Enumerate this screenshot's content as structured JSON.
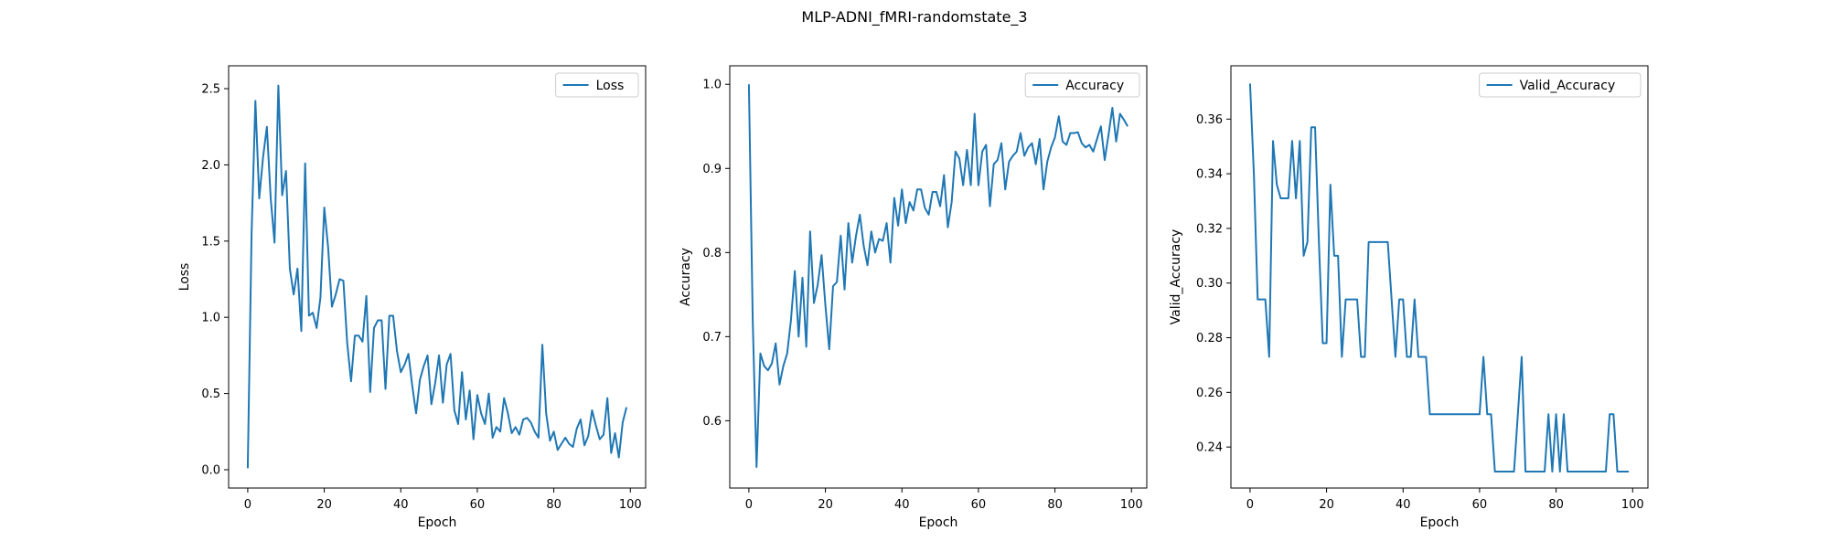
{
  "figure": {
    "title": "MLP-ADNI_fMRI-randomstate_3",
    "line_color": "#1f77b4"
  },
  "chart_data": [
    {
      "type": "line",
      "title": "",
      "xlabel": "Epoch",
      "ylabel": "Loss",
      "xlim": [
        -5,
        104
      ],
      "ylim": [
        -0.12,
        2.65
      ],
      "xticks": [
        0,
        20,
        40,
        60,
        80,
        100
      ],
      "yticks": [
        0.0,
        0.5,
        1.0,
        1.5,
        2.0,
        2.5
      ],
      "ytick_decimals": 1,
      "grid": false,
      "legend_position": "top-right",
      "series": [
        {
          "name": "Loss",
          "values": [
            0.01,
            1.55,
            2.42,
            1.78,
            2.05,
            2.25,
            1.78,
            1.49,
            2.52,
            1.8,
            1.96,
            1.32,
            1.15,
            1.32,
            0.91,
            2.01,
            1.01,
            1.03,
            0.93,
            1.13,
            1.72,
            1.46,
            1.07,
            1.15,
            1.25,
            1.24,
            0.83,
            0.58,
            0.88,
            0.88,
            0.84,
            1.14,
            0.51,
            0.93,
            0.98,
            0.98,
            0.53,
            1.01,
            1.01,
            0.78,
            0.64,
            0.69,
            0.76,
            0.55,
            0.37,
            0.59,
            0.68,
            0.75,
            0.43,
            0.57,
            0.75,
            0.44,
            0.69,
            0.76,
            0.39,
            0.3,
            0.64,
            0.33,
            0.52,
            0.2,
            0.49,
            0.37,
            0.3,
            0.5,
            0.21,
            0.28,
            0.25,
            0.47,
            0.37,
            0.24,
            0.28,
            0.23,
            0.33,
            0.34,
            0.31,
            0.25,
            0.21,
            0.82,
            0.37,
            0.19,
            0.25,
            0.13,
            0.17,
            0.21,
            0.17,
            0.15,
            0.27,
            0.33,
            0.16,
            0.22,
            0.39,
            0.29,
            0.2,
            0.23,
            0.47,
            0.11,
            0.24,
            0.08,
            0.31,
            0.41
          ]
        }
      ]
    },
    {
      "type": "line",
      "title": "",
      "xlabel": "Epoch",
      "ylabel": "Accuracy",
      "xlim": [
        -5,
        104
      ],
      "ylim": [
        0.52,
        1.022
      ],
      "xticks": [
        0,
        20,
        40,
        60,
        80,
        100
      ],
      "yticks": [
        0.6,
        0.7,
        0.8,
        0.9,
        1.0
      ],
      "ytick_decimals": 1,
      "grid": false,
      "legend_position": "top-right",
      "series": [
        {
          "name": "Accuracy",
          "values": [
            1.0,
            0.72,
            0.545,
            0.68,
            0.665,
            0.66,
            0.668,
            0.692,
            0.643,
            0.665,
            0.68,
            0.72,
            0.778,
            0.7,
            0.77,
            0.688,
            0.825,
            0.74,
            0.762,
            0.797,
            0.737,
            0.685,
            0.76,
            0.765,
            0.82,
            0.756,
            0.835,
            0.788,
            0.82,
            0.845,
            0.808,
            0.785,
            0.825,
            0.8,
            0.816,
            0.814,
            0.835,
            0.788,
            0.865,
            0.832,
            0.875,
            0.835,
            0.86,
            0.85,
            0.875,
            0.875,
            0.853,
            0.845,
            0.872,
            0.872,
            0.855,
            0.892,
            0.83,
            0.86,
            0.92,
            0.912,
            0.88,
            0.922,
            0.88,
            0.965,
            0.88,
            0.92,
            0.928,
            0.855,
            0.905,
            0.91,
            0.93,
            0.875,
            0.908,
            0.915,
            0.92,
            0.942,
            0.915,
            0.925,
            0.93,
            0.905,
            0.935,
            0.875,
            0.908,
            0.925,
            0.937,
            0.962,
            0.932,
            0.928,
            0.942,
            0.942,
            0.943,
            0.93,
            0.925,
            0.928,
            0.92,
            0.935,
            0.95,
            0.91,
            0.94,
            0.972,
            0.932,
            0.965,
            0.958,
            0.95
          ]
        }
      ]
    },
    {
      "type": "line",
      "title": "",
      "xlabel": "Epoch",
      "ylabel": "Valid_Accuracy",
      "xlim": [
        -5,
        104
      ],
      "ylim": [
        0.225,
        0.3795
      ],
      "xticks": [
        0,
        20,
        40,
        60,
        80,
        100
      ],
      "yticks": [
        0.24,
        0.26,
        0.28,
        0.3,
        0.32,
        0.34,
        0.36
      ],
      "ytick_decimals": 2,
      "grid": false,
      "legend_position": "top-right",
      "series": [
        {
          "name": "Valid_Accuracy",
          "values": [
            0.373,
            0.34,
            0.294,
            0.294,
            0.294,
            0.273,
            0.352,
            0.336,
            0.331,
            0.331,
            0.331,
            0.352,
            0.331,
            0.352,
            0.31,
            0.315,
            0.357,
            0.357,
            0.315,
            0.278,
            0.278,
            0.336,
            0.31,
            0.31,
            0.273,
            0.294,
            0.294,
            0.294,
            0.294,
            0.273,
            0.273,
            0.315,
            0.315,
            0.315,
            0.315,
            0.315,
            0.315,
            0.294,
            0.273,
            0.294,
            0.294,
            0.273,
            0.273,
            0.294,
            0.273,
            0.273,
            0.273,
            0.252,
            0.252,
            0.252,
            0.252,
            0.252,
            0.252,
            0.252,
            0.252,
            0.252,
            0.252,
            0.252,
            0.252,
            0.252,
            0.252,
            0.273,
            0.252,
            0.252,
            0.231,
            0.231,
            0.231,
            0.231,
            0.231,
            0.231,
            0.252,
            0.273,
            0.231,
            0.231,
            0.231,
            0.231,
            0.231,
            0.231,
            0.252,
            0.231,
            0.252,
            0.231,
            0.252,
            0.231,
            0.231,
            0.231,
            0.231,
            0.231,
            0.231,
            0.231,
            0.231,
            0.231,
            0.231,
            0.231,
            0.252,
            0.252,
            0.231,
            0.231,
            0.231,
            0.231
          ]
        }
      ]
    }
  ]
}
